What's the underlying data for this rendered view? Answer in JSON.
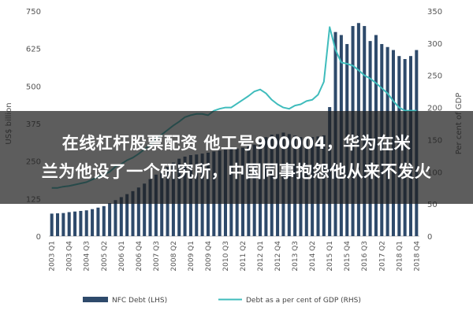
{
  "chart_data": {
    "type": "bar+line",
    "x": [
      "2003 Q1",
      "2003 Q2",
      "2003 Q3",
      "2003 Q4",
      "2004 Q1",
      "2004 Q2",
      "2004 Q3",
      "2004 Q4",
      "2005 Q1",
      "2005 Q2",
      "2005 Q3",
      "2005 Q4",
      "2006 Q1",
      "2006 Q2",
      "2006 Q3",
      "2006 Q4",
      "2007 Q1",
      "2007 Q2",
      "2007 Q3",
      "2007 Q4",
      "2008 Q1",
      "2008 Q2",
      "2008 Q3",
      "2008 Q4",
      "2009 Q1",
      "2009 Q2",
      "2009 Q3",
      "2009 Q4",
      "2010 Q1",
      "2010 Q2",
      "2010 Q3",
      "2010 Q4",
      "2011 Q1",
      "2011 Q2",
      "2011 Q3",
      "2011 Q4",
      "2012 Q1",
      "2012 Q2",
      "2012 Q3",
      "2012 Q4",
      "2013 Q1",
      "2013 Q2",
      "2013 Q3",
      "2013 Q4",
      "2014 Q1",
      "2014 Q2",
      "2014 Q3",
      "2014 Q4",
      "2015 Q1",
      "2015 Q2",
      "2015 Q3",
      "2015 Q4",
      "2016 Q1",
      "2016 Q2",
      "2016 Q3",
      "2016 Q4",
      "2017 Q1",
      "2017 Q2",
      "2017 Q3",
      "2017 Q4",
      "2018 Q1",
      "2018 Q2",
      "2018 Q3",
      "2018 Q4"
    ],
    "tick_labels": [
      "2003 Q1",
      "2003 Q4",
      "2004 Q3",
      "2005 Q2",
      "2006 Q1",
      "2006 Q4",
      "2007 Q3",
      "2008 Q2",
      "2009 Q1",
      "2009 Q4",
      "2010 Q3",
      "2011 Q2",
      "2012 Q1",
      "2012 Q4",
      "2013 Q3",
      "2014 Q2",
      "2015 Q1",
      "2015 Q4",
      "2016 Q3",
      "2017 Q2",
      "2018 Q1",
      "2018 Q4"
    ],
    "series": [
      {
        "name": "NFC Debt (LHS)",
        "axis": "left",
        "kind": "bar",
        "color": "#2e4a6b",
        "values": [
          75,
          76,
          77,
          80,
          82,
          84,
          86,
          90,
          95,
          100,
          110,
          120,
          130,
          140,
          150,
          162,
          175,
          190,
          205,
          218,
          230,
          245,
          258,
          265,
          270,
          272,
          275,
          278,
          282,
          285,
          288,
          290,
          292,
          295,
          300,
          305,
          318,
          330,
          338,
          340,
          345,
          340,
          335,
          330,
          328,
          330,
          332,
          336,
          430,
          680,
          670,
          640,
          700,
          710,
          700,
          650,
          670,
          640,
          630,
          620,
          600,
          590,
          600,
          620
        ]
      },
      {
        "name": "Debt as a per cent of GDP (RHS)",
        "axis": "right",
        "kind": "line",
        "color": "#3fbcbc",
        "values": [
          75,
          75,
          77,
          78,
          80,
          82,
          84,
          88,
          92,
          96,
          100,
          108,
          112,
          118,
          122,
          128,
          135,
          142,
          150,
          158,
          165,
          172,
          178,
          185,
          188,
          190,
          190,
          188,
          195,
          198,
          200,
          200,
          206,
          212,
          218,
          225,
          228,
          222,
          212,
          205,
          200,
          198,
          203,
          205,
          210,
          212,
          220,
          240,
          325,
          290,
          270,
          268,
          265,
          258,
          250,
          245,
          238,
          230,
          222,
          210,
          200,
          195,
          195,
          195
        ]
      }
    ],
    "left_axis": {
      "label": "US$ billion",
      "ylim": [
        0,
        750
      ],
      "ticks": [
        0,
        125,
        250,
        375,
        500,
        625,
        750
      ]
    },
    "right_axis": {
      "label": "Per cent of GDP",
      "ylim": [
        0,
        350
      ],
      "ticks": [
        0,
        50,
        100,
        150,
        200,
        250,
        300,
        350
      ]
    },
    "legend": {
      "placement": "bottom"
    },
    "grid": false
  },
  "overlay": {
    "line1": "在线杠杆股票配资 他工号900004，华为在米",
    "line2": "兰为他设了一个研究所，中国同事抱怨他从来不发火"
  }
}
